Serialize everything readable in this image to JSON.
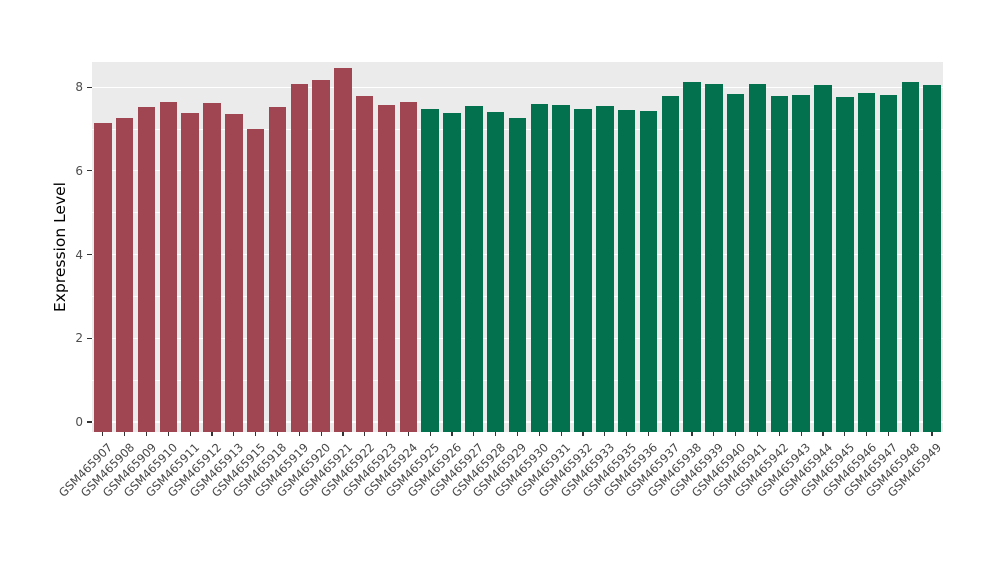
{
  "chart_data": {
    "type": "bar",
    "title": "",
    "xlabel": "",
    "ylabel": "Expression Level",
    "ylim": [
      0,
      8.6
    ],
    "yticks": [
      0,
      2,
      4,
      6,
      8
    ],
    "yticks_minor": [
      1,
      3,
      5,
      7
    ],
    "grid": true,
    "legend": "none",
    "categories": [
      "GSM465907",
      "GSM465908",
      "GSM465909",
      "GSM465910",
      "GSM465911",
      "GSM465912",
      "GSM465913",
      "GSM465915",
      "GSM465918",
      "GSM465919",
      "GSM465920",
      "GSM465921",
      "GSM465922",
      "GSM465923",
      "GSM465924",
      "GSM465925",
      "GSM465926",
      "GSM465927",
      "GSM465928",
      "GSM465929",
      "GSM465930",
      "GSM465931",
      "GSM465932",
      "GSM465933",
      "GSM465935",
      "GSM465936",
      "GSM465937",
      "GSM465938",
      "GSM465939",
      "GSM465940",
      "GSM465941",
      "GSM465942",
      "GSM465943",
      "GSM465944",
      "GSM465945",
      "GSM465946",
      "GSM465947",
      "GSM465948",
      "GSM465949"
    ],
    "values": [
      7.15,
      7.27,
      7.52,
      7.65,
      7.38,
      7.62,
      7.35,
      7.0,
      7.52,
      8.07,
      8.17,
      8.45,
      7.8,
      7.57,
      7.65,
      7.47,
      7.38,
      7.55,
      7.4,
      7.27,
      7.6,
      7.57,
      7.48,
      7.55,
      7.45,
      7.42,
      7.8,
      8.13,
      8.08,
      7.83,
      8.07,
      7.8,
      7.82,
      8.05,
      7.77,
      7.87,
      7.82,
      8.12,
      8.05
    ],
    "groups": [
      0,
      0,
      0,
      0,
      0,
      0,
      0,
      0,
      0,
      0,
      0,
      0,
      0,
      0,
      0,
      1,
      1,
      1,
      1,
      1,
      1,
      1,
      1,
      1,
      1,
      1,
      1,
      1,
      1,
      1,
      1,
      1,
      1,
      1,
      1,
      1,
      1,
      1,
      1
    ],
    "group_colors": [
      "#A04552",
      "#03714E"
    ],
    "panel_background": "#EBEBEB",
    "grid_color": "#FFFFFF"
  }
}
